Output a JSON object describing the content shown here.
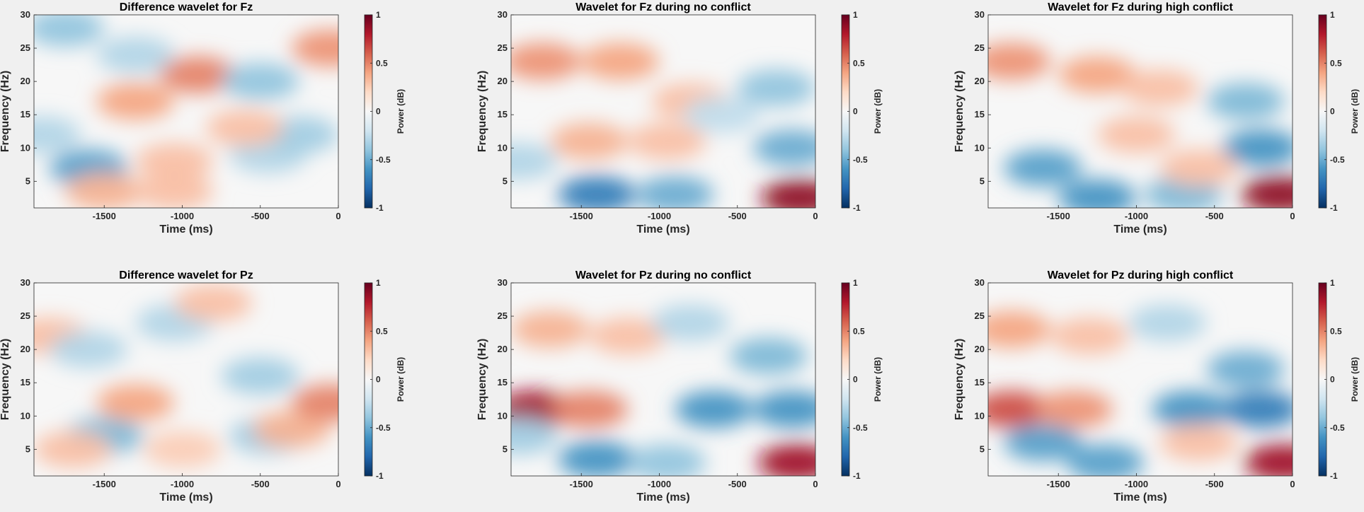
{
  "figure": {
    "background": "#f0f0f0",
    "colormap": [
      "#053061",
      "#2166ac",
      "#4393c3",
      "#92c5de",
      "#d1e5f0",
      "#f7f7f7",
      "#fddbc7",
      "#f4a582",
      "#d6604d",
      "#b2182b",
      "#67001f"
    ]
  },
  "chart_data": [
    {
      "type": "heatmap",
      "title": "Difference wavelet for Fz",
      "xlabel": "Time (ms)",
      "ylabel": "Frequency (Hz)",
      "xlim": [
        -1950,
        0
      ],
      "ylim": [
        1,
        30
      ],
      "xticks": [
        -1500,
        -1000,
        -500,
        0
      ],
      "yticks": [
        5,
        10,
        15,
        20,
        25,
        30
      ],
      "colorbar": {
        "label": "Power (dB)",
        "clim": [
          -1,
          1
        ],
        "ticks": [
          -1,
          -0.5,
          0,
          0.5,
          1
        ]
      },
      "features": [
        {
          "t": -1600,
          "f": 7,
          "value": -0.55
        },
        {
          "t": -1500,
          "f": 3.5,
          "value": 0.35
        },
        {
          "t": -1050,
          "f": 3.5,
          "value": 0.3
        },
        {
          "t": -1300,
          "f": 17,
          "value": 0.4
        },
        {
          "t": -900,
          "f": 21,
          "value": 0.5
        },
        {
          "t": -1750,
          "f": 28,
          "value": -0.4
        },
        {
          "t": -1300,
          "f": 24,
          "value": -0.3
        },
        {
          "t": -500,
          "f": 20,
          "value": -0.4
        },
        {
          "t": -450,
          "f": 9,
          "value": -0.3
        },
        {
          "t": -250,
          "f": 12,
          "value": -0.35
        },
        {
          "t": -50,
          "f": 25,
          "value": 0.45
        },
        {
          "t": -1900,
          "f": 12,
          "value": -0.3
        },
        {
          "t": -600,
          "f": 13,
          "value": 0.3
        },
        {
          "t": -1050,
          "f": 8,
          "value": 0.3
        }
      ]
    },
    {
      "type": "heatmap",
      "title": "Wavelet for Fz during no conflict",
      "xlabel": "Time (ms)",
      "ylabel": "Frequency (Hz)",
      "xlim": [
        -1950,
        0
      ],
      "ylim": [
        1,
        30
      ],
      "xticks": [
        -1500,
        -1000,
        -500,
        0
      ],
      "yticks": [
        5,
        10,
        15,
        20,
        25,
        30
      ],
      "colorbar": {
        "label": "Power (dB)",
        "clim": [
          -1,
          1
        ],
        "ticks": [
          -1,
          -0.5,
          0,
          0.5,
          1
        ]
      },
      "features": [
        {
          "t": -1400,
          "f": 3,
          "value": -0.7
        },
        {
          "t": -900,
          "f": 3,
          "value": -0.5
        },
        {
          "t": -100,
          "f": 2.5,
          "value": 0.9
        },
        {
          "t": -1750,
          "f": 23,
          "value": 0.45
        },
        {
          "t": -1250,
          "f": 23,
          "value": 0.4
        },
        {
          "t": -1450,
          "f": 11,
          "value": 0.35
        },
        {
          "t": -950,
          "f": 11,
          "value": 0.3
        },
        {
          "t": -150,
          "f": 10,
          "value": -0.5
        },
        {
          "t": -250,
          "f": 19,
          "value": -0.4
        },
        {
          "t": -800,
          "f": 17,
          "value": 0.3
        },
        {
          "t": -600,
          "f": 15,
          "value": -0.25
        },
        {
          "t": -1900,
          "f": 8,
          "value": -0.3
        }
      ]
    },
    {
      "type": "heatmap",
      "title": "Wavelet for Fz during high conflict",
      "xlabel": "Time (ms)",
      "ylabel": "Frequency (Hz)",
      "xlim": [
        -1950,
        0
      ],
      "ylim": [
        1,
        30
      ],
      "xticks": [
        -1500,
        -1000,
        -500,
        0
      ],
      "yticks": [
        5,
        10,
        15,
        20,
        25,
        30
      ],
      "colorbar": {
        "label": "Power (dB)",
        "clim": [
          -1,
          1
        ],
        "ticks": [
          -1,
          -0.5,
          0,
          0.5,
          1
        ]
      },
      "features": [
        {
          "t": -1600,
          "f": 7,
          "value": -0.55
        },
        {
          "t": -1250,
          "f": 2.5,
          "value": -0.6
        },
        {
          "t": -700,
          "f": 3,
          "value": -0.45
        },
        {
          "t": -80,
          "f": 3,
          "value": 0.9
        },
        {
          "t": -1800,
          "f": 23,
          "value": 0.45
        },
        {
          "t": -1250,
          "f": 21,
          "value": 0.4
        },
        {
          "t": -1000,
          "f": 12,
          "value": 0.3
        },
        {
          "t": -200,
          "f": 10,
          "value": -0.6
        },
        {
          "t": -300,
          "f": 17,
          "value": -0.45
        },
        {
          "t": -850,
          "f": 19,
          "value": 0.3
        },
        {
          "t": -600,
          "f": 7,
          "value": 0.3
        }
      ]
    },
    {
      "type": "heatmap",
      "title": "Difference wavelet for Pz",
      "xlabel": "Time (ms)",
      "ylabel": "Frequency (Hz)",
      "xlim": [
        -1950,
        0
      ],
      "ylim": [
        1,
        30
      ],
      "xticks": [
        -1500,
        -1000,
        -500,
        0
      ],
      "yticks": [
        5,
        10,
        15,
        20,
        25,
        30
      ],
      "colorbar": {
        "label": "Power (dB)",
        "clim": [
          -1,
          1
        ],
        "ticks": [
          -1,
          -0.5,
          0,
          0.5,
          1
        ]
      },
      "features": [
        {
          "t": -1500,
          "f": 7,
          "value": -0.45
        },
        {
          "t": -1700,
          "f": 5,
          "value": 0.3
        },
        {
          "t": -1300,
          "f": 12,
          "value": 0.4
        },
        {
          "t": -1850,
          "f": 22,
          "value": 0.3
        },
        {
          "t": -1600,
          "f": 20,
          "value": -0.3
        },
        {
          "t": -1050,
          "f": 24,
          "value": -0.3
        },
        {
          "t": -500,
          "f": 16,
          "value": -0.35
        },
        {
          "t": -450,
          "f": 7,
          "value": -0.35
        },
        {
          "t": -300,
          "f": 8,
          "value": 0.35
        },
        {
          "t": -50,
          "f": 12,
          "value": 0.5
        },
        {
          "t": -800,
          "f": 27,
          "value": 0.3
        },
        {
          "t": -1000,
          "f": 5,
          "value": 0.25
        }
      ]
    },
    {
      "type": "heatmap",
      "title": "Wavelet for Pz during no conflict",
      "xlabel": "Time (ms)",
      "ylabel": "Frequency (Hz)",
      "xlim": [
        -1950,
        0
      ],
      "ylim": [
        1,
        30
      ],
      "xticks": [
        -1500,
        -1000,
        -500,
        0
      ],
      "yticks": [
        5,
        10,
        15,
        20,
        25,
        30
      ],
      "colorbar": {
        "label": "Power (dB)",
        "clim": [
          -1,
          1
        ],
        "ticks": [
          -1,
          -0.5,
          0,
          0.5,
          1
        ]
      },
      "features": [
        {
          "t": -1800,
          "f": 11,
          "value": 0.85
        },
        {
          "t": -1450,
          "f": 11,
          "value": 0.5
        },
        {
          "t": -650,
          "f": 11,
          "value": -0.6
        },
        {
          "t": -150,
          "f": 11,
          "value": -0.6
        },
        {
          "t": -1400,
          "f": 3.5,
          "value": -0.6
        },
        {
          "t": -950,
          "f": 3,
          "value": -0.4
        },
        {
          "t": -120,
          "f": 3,
          "value": 0.85
        },
        {
          "t": -1700,
          "f": 23,
          "value": 0.35
        },
        {
          "t": -1200,
          "f": 22,
          "value": 0.3
        },
        {
          "t": -300,
          "f": 19,
          "value": -0.45
        },
        {
          "t": -800,
          "f": 24,
          "value": -0.3
        },
        {
          "t": -1900,
          "f": 7,
          "value": -0.35
        }
      ]
    },
    {
      "type": "heatmap",
      "title": "Wavelet for Pz during high conflict",
      "xlabel": "Time (ms)",
      "ylabel": "Frequency (Hz)",
      "xlim": [
        -1950,
        0
      ],
      "ylim": [
        1,
        30
      ],
      "xticks": [
        -1500,
        -1000,
        -500,
        0
      ],
      "yticks": [
        5,
        10,
        15,
        20,
        25,
        30
      ],
      "colorbar": {
        "label": "Power (dB)",
        "clim": [
          -1,
          1
        ],
        "ticks": [
          -1,
          -0.5,
          0,
          0.5,
          1
        ]
      },
      "features": [
        {
          "t": -1800,
          "f": 11,
          "value": 0.65
        },
        {
          "t": -1400,
          "f": 11,
          "value": 0.45
        },
        {
          "t": -650,
          "f": 11,
          "value": -0.6
        },
        {
          "t": -200,
          "f": 11,
          "value": -0.7
        },
        {
          "t": -1600,
          "f": 6,
          "value": -0.55
        },
        {
          "t": -1200,
          "f": 3,
          "value": -0.55
        },
        {
          "t": -60,
          "f": 3,
          "value": 0.85
        },
        {
          "t": -1800,
          "f": 23,
          "value": 0.4
        },
        {
          "t": -1300,
          "f": 22,
          "value": 0.3
        },
        {
          "t": -300,
          "f": 17,
          "value": -0.5
        },
        {
          "t": -800,
          "f": 24,
          "value": -0.3
        },
        {
          "t": -600,
          "f": 6,
          "value": 0.3
        }
      ]
    }
  ]
}
